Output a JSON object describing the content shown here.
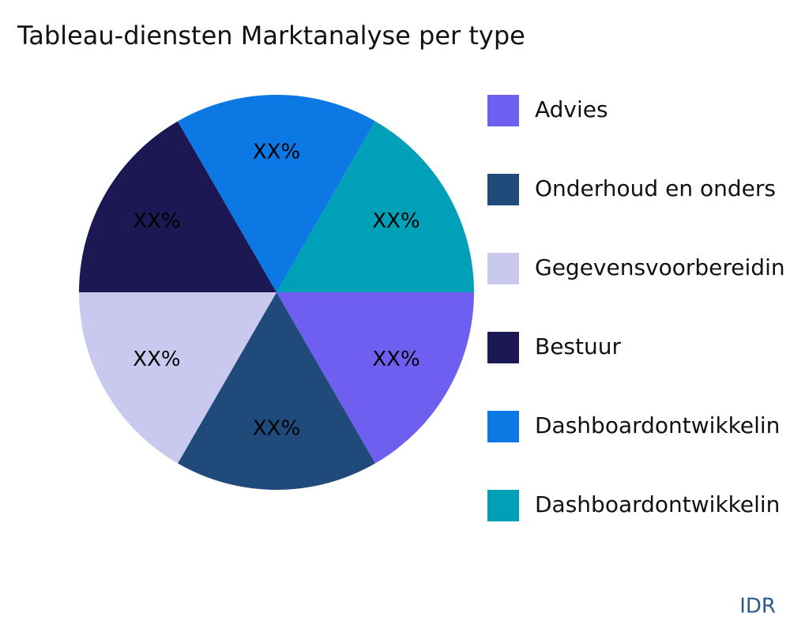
{
  "chart_data": {
    "type": "pie",
    "title": "Tableau-diensten Marktanalyse per type",
    "categories": [
      "Advies",
      "Onderhoud en onders",
      "Gegevensvoorbereidin",
      "Bestuur",
      "Dashboardontwikkelin",
      "Dashboardontwikkelin"
    ],
    "values": [
      16.67,
      16.67,
      16.67,
      16.67,
      16.67,
      16.67
    ],
    "value_labels": [
      "XX%",
      "XX%",
      "XX%",
      "XX%",
      "XX%",
      "XX%"
    ],
    "colors": [
      "#6e5ff0",
      "#1f4a7a",
      "#c9c9f0",
      "#1c1854",
      "#0c78e3",
      "#00a0b8"
    ],
    "legend": "right",
    "source": "IDR"
  }
}
